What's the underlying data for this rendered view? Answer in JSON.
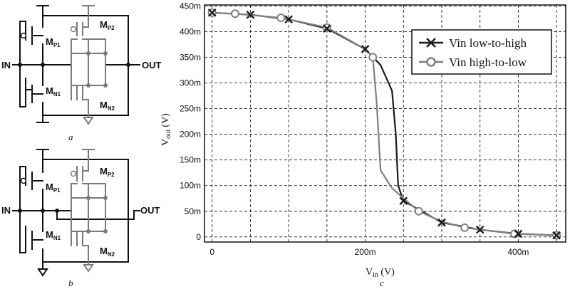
{
  "circuit_a": {
    "in_label": "IN",
    "out_label": "OUT",
    "mp1": {
      "main": "M",
      "sub": "P1"
    },
    "mn1": {
      "main": "M",
      "sub": "N1"
    },
    "mp2": {
      "main": "M",
      "sub": "P2"
    },
    "mn2": {
      "main": "M",
      "sub": "N2"
    },
    "caption": "a"
  },
  "circuit_b": {
    "in_label": "IN",
    "out_label": "OUT",
    "mp1": {
      "main": "M",
      "sub": "P1"
    },
    "mn1": {
      "main": "M",
      "sub": "N1"
    },
    "mp2": {
      "main": "M",
      "sub": "P2"
    },
    "mn2": {
      "main": "M",
      "sub": "N2"
    },
    "caption": "b"
  },
  "chart_caption": "c",
  "colors": {
    "series_low_to_high": "#1a1a1a",
    "series_high_to_low": "#808080",
    "grid": "#222222"
  },
  "chart_data": {
    "type": "line",
    "xlabel": {
      "main": "V",
      "sub": "in",
      "unit": " (V)"
    },
    "ylabel": {
      "main": "V",
      "sub": "out",
      "unit": " (V)"
    },
    "xlim": [
      -0.01,
      0.462
    ],
    "ylim": [
      -0.01,
      0.452
    ],
    "x_ticks": [
      {
        "value": 0,
        "label": "0"
      },
      {
        "value": 0.2,
        "label": "200m"
      },
      {
        "value": 0.4,
        "label": "400m"
      }
    ],
    "x_grid": [
      0,
      0.05,
      0.1,
      0.15,
      0.2,
      0.25,
      0.3,
      0.35,
      0.4,
      0.45
    ],
    "y_ticks": [
      {
        "value": 0,
        "label": "0"
      },
      {
        "value": 0.05,
        "label": "50m"
      },
      {
        "value": 0.1,
        "label": "100m"
      },
      {
        "value": 0.15,
        "label": "150m"
      },
      {
        "value": 0.2,
        "label": "200m"
      },
      {
        "value": 0.25,
        "label": "250m"
      },
      {
        "value": 0.3,
        "label": "300m"
      },
      {
        "value": 0.35,
        "label": "350m"
      },
      {
        "value": 0.4,
        "label": "400m"
      },
      {
        "value": 0.45,
        "label": "450m"
      }
    ],
    "grid": true,
    "legend_position": "top-right",
    "series": [
      {
        "name": "Vin low-to-high",
        "color": "#1a1a1a",
        "marker": "x",
        "points": [
          [
            0,
            0.437
          ],
          [
            0.05,
            0.433
          ],
          [
            0.1,
            0.424
          ],
          [
            0.15,
            0.406
          ],
          [
            0.2,
            0.366
          ],
          [
            0.22,
            0.335
          ],
          [
            0.235,
            0.285
          ],
          [
            0.24,
            0.2
          ],
          [
            0.243,
            0.1
          ],
          [
            0.25,
            0.07
          ],
          [
            0.3,
            0.028
          ],
          [
            0.35,
            0.014
          ],
          [
            0.4,
            0.006
          ],
          [
            0.45,
            0.003
          ]
        ],
        "markers": [
          [
            0,
            0.437
          ],
          [
            0.05,
            0.433
          ],
          [
            0.1,
            0.424
          ],
          [
            0.15,
            0.406
          ],
          [
            0.2,
            0.366
          ],
          [
            0.25,
            0.07
          ],
          [
            0.3,
            0.028
          ],
          [
            0.35,
            0.014
          ],
          [
            0.4,
            0.006
          ],
          [
            0.45,
            0.003
          ]
        ]
      },
      {
        "name": "Vin high-to-low",
        "color": "#808080",
        "marker": "o",
        "points": [
          [
            0,
            0.437
          ],
          [
            0.03,
            0.435
          ],
          [
            0.09,
            0.427
          ],
          [
            0.15,
            0.408
          ],
          [
            0.2,
            0.366
          ],
          [
            0.21,
            0.35
          ],
          [
            0.215,
            0.26
          ],
          [
            0.22,
            0.13
          ],
          [
            0.235,
            0.095
          ],
          [
            0.25,
            0.075
          ],
          [
            0.27,
            0.05
          ],
          [
            0.3,
            0.03
          ],
          [
            0.33,
            0.018
          ],
          [
            0.395,
            0.006
          ],
          [
            0.45,
            0.003
          ]
        ],
        "markers": [
          [
            0,
            0.437
          ],
          [
            0.03,
            0.435
          ],
          [
            0.09,
            0.427
          ],
          [
            0.15,
            0.408
          ],
          [
            0.21,
            0.35
          ],
          [
            0.27,
            0.05
          ],
          [
            0.33,
            0.018
          ],
          [
            0.395,
            0.006
          ],
          [
            0.45,
            0.003
          ]
        ]
      }
    ]
  }
}
